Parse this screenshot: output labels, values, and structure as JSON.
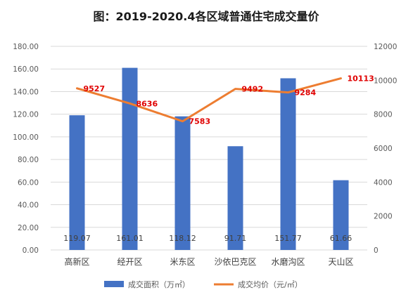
{
  "chart_data": {
    "type": "bar",
    "title": "图：2019-2020.4各区域普通住宅成交量价",
    "categories": [
      "高新区",
      "经开区",
      "米东区",
      "沙依巴克区",
      "水磨沟区",
      "天山区"
    ],
    "series": [
      {
        "name": "成交面积（万㎡）",
        "type": "bar",
        "axis": "left",
        "color": "#4472c4",
        "values": [
          119.07,
          161.01,
          118.12,
          91.71,
          151.77,
          61.66
        ],
        "labels": [
          "119.07",
          "161.01",
          "118.12",
          "91.71",
          "151.77",
          "61.66"
        ]
      },
      {
        "name": "成交均价（元/㎡）",
        "type": "line",
        "axis": "right",
        "color": "#ed7d31",
        "values": [
          9527,
          8636,
          7583,
          9492,
          9284,
          10113
        ],
        "labels": [
          "9527",
          "8636",
          "7583",
          "9492",
          "9284",
          "10113"
        ]
      }
    ],
    "y_left": {
      "min": 0,
      "max": 180,
      "ticks": [
        "0.00",
        "20.00",
        "40.00",
        "60.00",
        "80.00",
        "100.00",
        "120.00",
        "140.00",
        "160.00",
        "180.00"
      ]
    },
    "y_right": {
      "min": 0,
      "max": 12000,
      "ticks": [
        "0",
        "2000",
        "4000",
        "6000",
        "8000",
        "10000",
        "12000"
      ]
    },
    "grid": true,
    "legend": "bottom"
  }
}
